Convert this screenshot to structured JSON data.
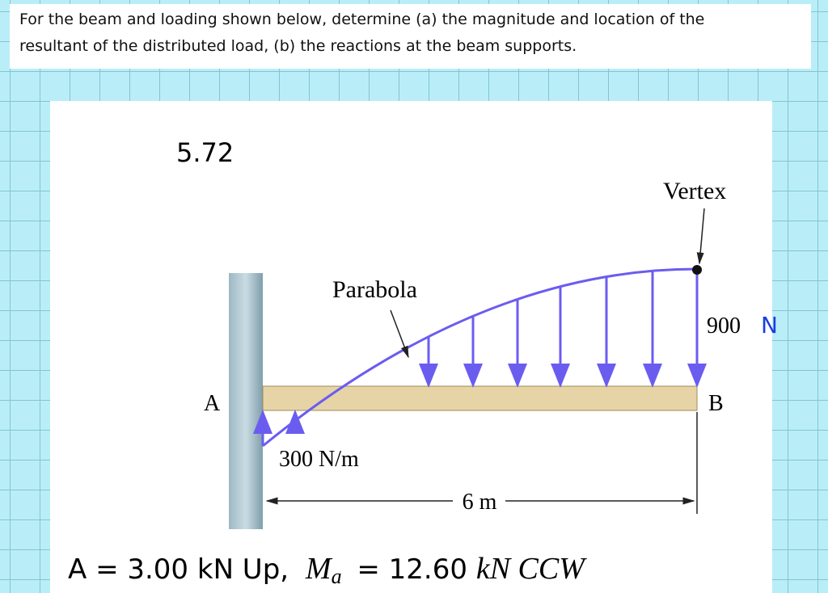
{
  "header": {
    "question_line1": "For the beam and loading shown below, determine (a) the magnitude and location of the",
    "question_line2": "resultant of the distributed load, (b) the reactions at the beam supports."
  },
  "figure": {
    "number": "5.72",
    "vertex_label": "Vertex",
    "parabola_label": "Parabola",
    "load_right": "900",
    "load_right_unit": "N",
    "support_a": "A",
    "support_b": "B",
    "load_left": "300 N/m",
    "span": "6 m"
  },
  "answer": {
    "left": "A = 3.00 kN Up,",
    "moment_symbol": "M",
    "moment_subscript": "a",
    "right": "= 12.60",
    "right_unit": "kN CCW"
  }
}
